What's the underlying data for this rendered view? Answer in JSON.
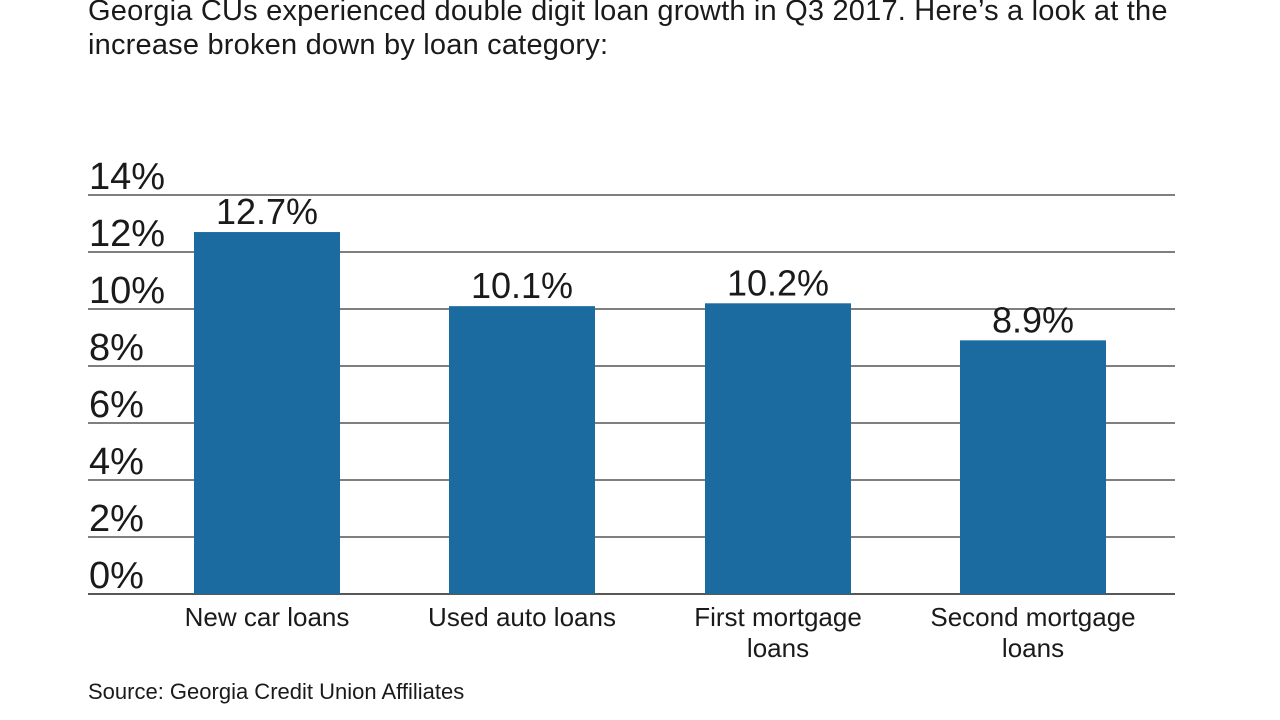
{
  "title": "Georgia CUs experienced double digit loan growth in Q3 2017. Here’s a look at the increase broken down by loan category:",
  "source": "Source: Georgia Credit Union Affiliates",
  "colors": {
    "bar": "#1b6aa0",
    "gridline": "#333333",
    "text": "#1a1a1a"
  },
  "chart_data": {
    "type": "bar",
    "categories": [
      [
        "New car loans"
      ],
      [
        "Used auto loans"
      ],
      [
        "First mortgage",
        "loans"
      ],
      [
        "Second mortgage",
        "loans"
      ]
    ],
    "values": [
      12.7,
      10.1,
      10.2,
      8.9
    ],
    "value_labels": [
      "12.7%",
      "10.1%",
      "10.2%",
      "8.9%"
    ],
    "ylim": [
      0,
      14
    ],
    "y_ticks": [
      0,
      2,
      4,
      6,
      8,
      10,
      12,
      14
    ],
    "y_tick_labels": [
      "0%",
      "2%",
      "4%",
      "6%",
      "8%",
      "10%",
      "12%",
      "14%"
    ],
    "grid": true,
    "legend": "none",
    "xlabel": "",
    "ylabel": ""
  }
}
